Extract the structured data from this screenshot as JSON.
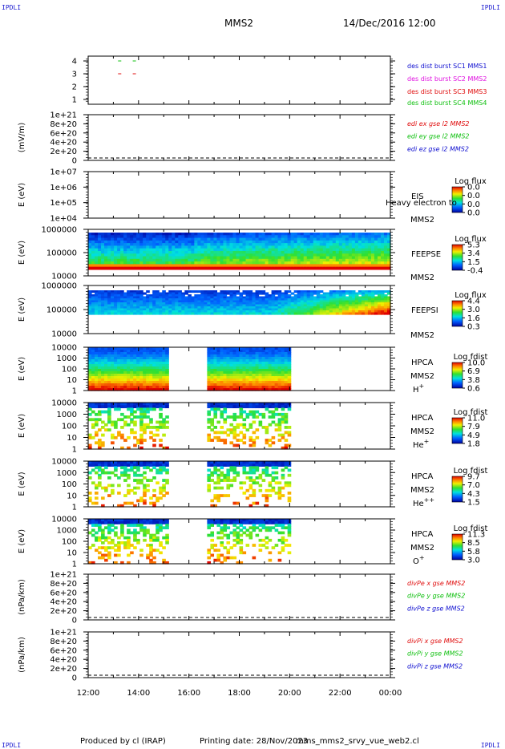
{
  "header": {
    "corner_left_top": "IPDLI",
    "corner_right_top": "IPDLI",
    "spacecraft": "MMS2",
    "datetime": "14/Dec/2016 12:00"
  },
  "footer": {
    "produced_by": "Produced by cl (IRAP)",
    "printing_date": "Printing date: 28/Nov/2023",
    "script": "mms_mms2_srvy_vue_web2.cl",
    "corner_left_bottom": "IPDLI",
    "corner_right_bottom": "IPDLI"
  },
  "x_axis": {
    "ticks": [
      "12:00",
      "14:00",
      "16:00",
      "18:00",
      "20:00",
      "22:00",
      "00:00"
    ]
  },
  "chart_data": [
    {
      "type": "line",
      "panel": "burst-status",
      "y_ticks": [
        "1",
        "2",
        "3",
        "4"
      ],
      "ylim": [
        0.5,
        4.5
      ],
      "series": [
        {
          "name": "des dist burst SC1 MMS1",
          "color": "#1010d0",
          "x": [],
          "y": []
        },
        {
          "name": "des dist burst SC2 MMS2",
          "color": "#e010e0",
          "x": [],
          "y": []
        },
        {
          "name": "des dist burst SC3 MMS3",
          "color": "#e01010",
          "x": [
            "13:15",
            "13:50"
          ],
          "y": [
            3,
            3
          ]
        },
        {
          "name": "des dist burst SC4 MMS4",
          "color": "#10c010",
          "x": [
            "13:15",
            "13:50"
          ],
          "y": [
            4,
            4
          ]
        }
      ]
    },
    {
      "type": "line",
      "panel": "edi-electric-field",
      "ylabel": "(mV/m)",
      "y_ticks": [
        "0",
        "2e+20",
        "4e+20",
        "6e+20",
        "8e+20",
        "1e+21"
      ],
      "series": [
        {
          "name": "edi ex gse l2 MMS2",
          "color": "#e01010"
        },
        {
          "name": "edi ey gse l2 MMS2",
          "color": "#10c010"
        },
        {
          "name": "edi ez gse l2 MMS2",
          "color": "#1010d0"
        }
      ]
    },
    {
      "type": "heatmap",
      "panel": "eis",
      "ylabel": "E (eV)",
      "y_ticks": [
        "1e+04",
        "1e+05",
        "1e+06",
        "1e+07"
      ],
      "instrument": "EIS",
      "subtitle": "Heavy electron to",
      "spacecraft": "MMS2",
      "colorbar_title": "Log flux",
      "colorbar_ticks": [
        "0.0",
        "0.0",
        "0.0",
        "0.0"
      ]
    },
    {
      "type": "heatmap",
      "panel": "feeps-electron",
      "ylabel": "E (eV)",
      "y_ticks": [
        "10000",
        "100000",
        "1000000"
      ],
      "instrument": "FEEPSE",
      "spacecraft": "MMS2",
      "colorbar_title": "Log flux",
      "colorbar_ticks": [
        "5.3",
        "3.4",
        "1.5",
        "-0.4"
      ]
    },
    {
      "type": "heatmap",
      "panel": "feeps-ion",
      "ylabel": "E (eV)",
      "y_ticks": [
        "10000",
        "100000",
        "1000000"
      ],
      "instrument": "FEEPSI",
      "spacecraft": "MMS2",
      "colorbar_title": "Log flux",
      "colorbar_ticks": [
        "4.4",
        "3.0",
        "1.6",
        "0.3"
      ]
    },
    {
      "type": "heatmap",
      "panel": "hpca-h",
      "ylabel": "E (eV)",
      "y_ticks": [
        "1",
        "10",
        "100",
        "1000",
        "10000"
      ],
      "instrument": "HPCA",
      "spacecraft": "MMS2",
      "species": "H",
      "species_charge": "+",
      "colorbar_title": "Log fdist",
      "colorbar_ticks": [
        "10.0",
        "6.9",
        "3.8",
        "0.6"
      ]
    },
    {
      "type": "heatmap",
      "panel": "hpca-he",
      "ylabel": "E (eV)",
      "y_ticks": [
        "1",
        "10",
        "100",
        "1000",
        "10000"
      ],
      "instrument": "HPCA",
      "spacecraft": "MMS2",
      "species": "He",
      "species_charge": "+",
      "colorbar_title": "Log fdist",
      "colorbar_ticks": [
        "11.0",
        "7.9",
        "4.9",
        "1.8"
      ]
    },
    {
      "type": "heatmap",
      "panel": "hpca-he2",
      "ylabel": "E (eV)",
      "y_ticks": [
        "1",
        "10",
        "100",
        "1000",
        "10000"
      ],
      "instrument": "HPCA",
      "spacecraft": "MMS2",
      "species": "He",
      "species_charge": "++",
      "colorbar_title": "Log fdist",
      "colorbar_ticks": [
        "9.7",
        "7.0",
        "4.3",
        "1.5"
      ]
    },
    {
      "type": "heatmap",
      "panel": "hpca-o",
      "ylabel": "E (eV)",
      "y_ticks": [
        "1",
        "10",
        "100",
        "1000",
        "10000"
      ],
      "instrument": "HPCA",
      "spacecraft": "MMS2",
      "species": "O",
      "species_charge": "+",
      "colorbar_title": "Log fdist",
      "colorbar_ticks": [
        "11.3",
        "8.5",
        "5.8",
        "3.0"
      ]
    },
    {
      "type": "line",
      "panel": "divpe",
      "ylabel": "(nPa/km)",
      "y_ticks": [
        "0",
        "2e+20",
        "4e+20",
        "6e+20",
        "8e+20",
        "1e+21"
      ],
      "series": [
        {
          "name": "divPe x gse MMS2",
          "color": "#e01010"
        },
        {
          "name": "divPe y gse MMS2",
          "color": "#10c010"
        },
        {
          "name": "divPe z gse MMS2",
          "color": "#1010d0"
        }
      ]
    },
    {
      "type": "line",
      "panel": "divpi",
      "ylabel": "(nPa/km)",
      "y_ticks": [
        "0",
        "2e+20",
        "4e+20",
        "6e+20",
        "8e+20",
        "1e+21"
      ],
      "series": [
        {
          "name": "divPi x gse MMS2",
          "color": "#e01010"
        },
        {
          "name": "divPi y gse MMS2",
          "color": "#10c010"
        },
        {
          "name": "divPi z gse MMS2",
          "color": "#1010d0"
        }
      ]
    }
  ]
}
